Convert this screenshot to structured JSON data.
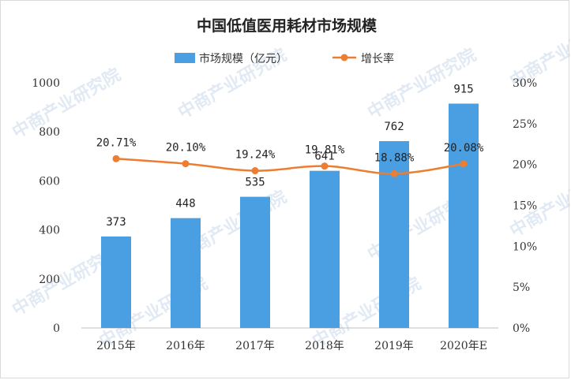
{
  "chart_data": {
    "type": "bar",
    "title": "中国低值医用耗材市场规模",
    "categories": [
      "2015年",
      "2016年",
      "2017年",
      "2018年",
      "2019年",
      "2020年E"
    ],
    "series": [
      {
        "name": "市场规模（亿元）",
        "type": "bar",
        "axis": "left",
        "values": [
          373,
          448,
          535,
          641,
          762,
          915
        ],
        "labels": [
          "373",
          "448",
          "535",
          "641",
          "762",
          "915"
        ]
      },
      {
        "name": "增长率",
        "type": "line",
        "axis": "right",
        "values": [
          20.71,
          20.1,
          19.24,
          19.81,
          18.88,
          20.08
        ],
        "labels": [
          "20.71%",
          "20.10%",
          "19.24%",
          "19.81%",
          "18.88%",
          "20.08%"
        ]
      }
    ],
    "y_left": {
      "ylim": [
        0,
        1000
      ],
      "ticks": [
        "0",
        "200",
        "400",
        "600",
        "800",
        "1000"
      ]
    },
    "y_right": {
      "ylim": [
        0,
        30
      ],
      "ticks": [
        "0%",
        "5%",
        "10%",
        "15%",
        "20%",
        "25%",
        "30%"
      ]
    },
    "grid": false,
    "legend_position": "top-center",
    "colors": {
      "bar": "#4a9fe3",
      "line": "#ed7d31"
    }
  },
  "watermark": {
    "text": "中商产业研究院"
  }
}
